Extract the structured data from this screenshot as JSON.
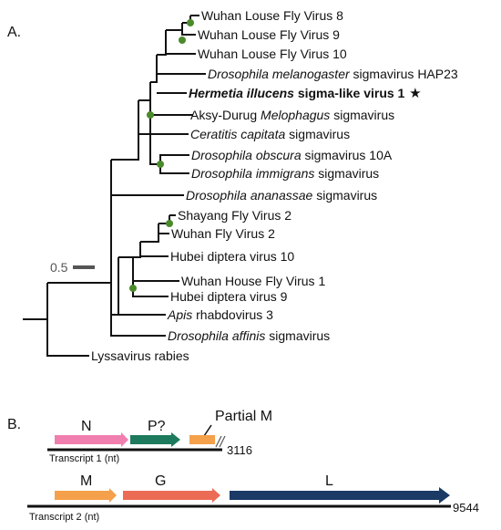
{
  "panels": {
    "a": "A.",
    "b": "B."
  },
  "scale_label": "0.5",
  "taxa": [
    {
      "id": "t1",
      "parts": [
        {
          "text": "Wuhan Louse Fly Virus 8"
        }
      ]
    },
    {
      "id": "t2",
      "parts": [
        {
          "text": "Wuhan Louse Fly Virus 9"
        }
      ]
    },
    {
      "id": "t3",
      "parts": [
        {
          "text": "Wuhan Louse Fly Virus 10"
        }
      ]
    },
    {
      "id": "t4",
      "parts": [
        {
          "text": "Drosophila melanogaster",
          "italic": true
        },
        {
          "text": " sigmavirus HAP23"
        }
      ]
    },
    {
      "id": "t5",
      "parts": [
        {
          "text": "Hermetia illucens",
          "italic": true,
          "bold": true
        },
        {
          "text": " sigma-like virus 1",
          "bold": true
        }
      ],
      "star": "★"
    },
    {
      "id": "t6",
      "parts": [
        {
          "text": "Aksy-Durug "
        },
        {
          "text": "Melophagus",
          "italic": true
        },
        {
          "text": " sigmavirus"
        }
      ]
    },
    {
      "id": "t7",
      "parts": [
        {
          "text": "Ceratitis capitata",
          "italic": true
        },
        {
          "text": " sigmavirus"
        }
      ]
    },
    {
      "id": "t8",
      "parts": [
        {
          "text": "Drosophila obscura",
          "italic": true
        },
        {
          "text": " sigmavirus 10A"
        }
      ]
    },
    {
      "id": "t9",
      "parts": [
        {
          "text": "Drosophila immigrans",
          "italic": true
        },
        {
          "text": " sigmavirus"
        }
      ]
    },
    {
      "id": "t10",
      "parts": [
        {
          "text": "Drosophila ananassae",
          "italic": true
        },
        {
          "text": " sigmavirus"
        }
      ]
    },
    {
      "id": "t11",
      "parts": [
        {
          "text": "Shayang Fly Virus 2"
        }
      ]
    },
    {
      "id": "t12",
      "parts": [
        {
          "text": "Wuhan Fly Virus 2"
        }
      ]
    },
    {
      "id": "t13",
      "parts": [
        {
          "text": "Hubei diptera virus 10"
        }
      ]
    },
    {
      "id": "t14",
      "parts": [
        {
          "text": "Wuhan House Fly Virus 1"
        }
      ]
    },
    {
      "id": "t15",
      "parts": [
        {
          "text": "Hubei diptera virus 9"
        }
      ]
    },
    {
      "id": "t16",
      "parts": [
        {
          "text": "Apis",
          "italic": true
        },
        {
          "text": " rhabdovirus 3"
        }
      ]
    },
    {
      "id": "t17",
      "parts": [
        {
          "text": "Drosophila affinis",
          "italic": true
        },
        {
          "text": " sigmavirus"
        }
      ]
    },
    {
      "id": "t18",
      "parts": [
        {
          "text": "Lyssavirus rabies"
        }
      ]
    }
  ],
  "transcript1": {
    "label": "Transcript 1 (nt)",
    "length": "3116",
    "genes": [
      {
        "name": "N",
        "color": "#f07fb0"
      },
      {
        "name": "P?",
        "color": "#1d7a5c"
      },
      {
        "name": "Partial M",
        "color": "#f5a04a"
      }
    ]
  },
  "transcript2": {
    "label": "Transcript 2 (nt)",
    "length": "9544",
    "genes": [
      {
        "name": "M",
        "color": "#f5a04a"
      },
      {
        "name": "G",
        "color": "#ec6b55"
      },
      {
        "name": "L",
        "color": "#1b3a66"
      }
    ]
  },
  "colors": {
    "node": "#4a8a2a",
    "scale_bar": "#555555",
    "line": "#111111"
  }
}
